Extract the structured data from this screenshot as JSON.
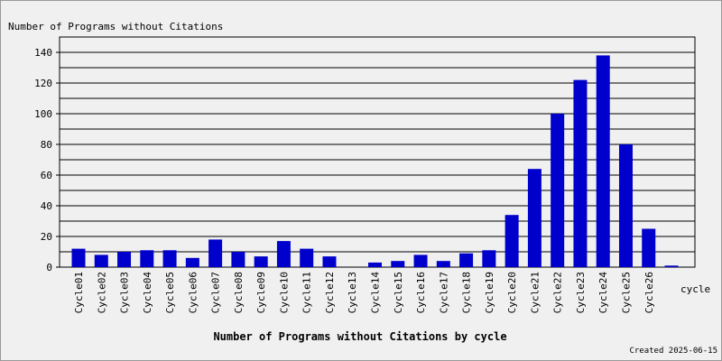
{
  "chart_data": {
    "type": "bar",
    "title": "Number of Programs without Citations",
    "x_title": "Number of Programs without Citations by cycle",
    "x_axis_label": "cycle",
    "footnote": "Created 2025-06-15",
    "categories": [
      "Cycle01",
      "Cycle02",
      "Cycle03",
      "Cycle04",
      "Cycle05",
      "Cycle06",
      "Cycle07",
      "Cycle08",
      "Cycle09",
      "Cycle10",
      "Cycle11",
      "Cycle12",
      "Cycle13",
      "Cycle14",
      "Cycle15",
      "Cycle16",
      "Cycle17",
      "Cycle18",
      "Cycle19",
      "Cycle20",
      "Cycle21",
      "Cycle22",
      "Cycle23",
      "Cycle24",
      "Cycle25",
      "Cycle26",
      null
    ],
    "values": [
      12,
      8,
      10,
      11,
      11,
      6,
      18,
      10,
      7,
      17,
      12,
      7,
      0,
      3,
      4,
      8,
      4,
      9,
      11,
      34,
      64,
      100,
      122,
      138,
      80,
      25,
      1
    ],
    "color": "#0000cc",
    "ylim": [
      0,
      150
    ],
    "yticks": [
      0,
      20,
      40,
      60,
      80,
      100,
      120,
      140
    ],
    "minor_yticks": [
      10,
      30,
      50,
      70,
      90,
      110,
      130,
      150
    ],
    "grid": true
  }
}
